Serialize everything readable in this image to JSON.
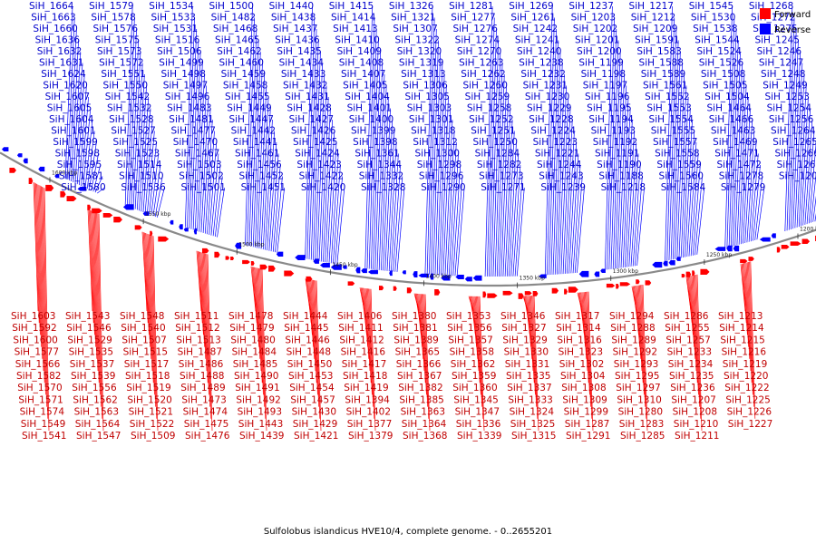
{
  "caption": "Sulfolobus islandicus HVE10/4, complete genome. - 0..2655201",
  "legend": [
    {
      "label": "Forward",
      "color": "#ff0000"
    },
    {
      "label": "Reverse",
      "color": "#0000ff"
    }
  ],
  "colors": {
    "forward": "#ff0000",
    "reverse": "#0000ff",
    "backbone": "#8a8a8a",
    "text_forward": "#c00000",
    "text_reverse": "#0000cc"
  },
  "ticks": [
    "1600 kbp",
    "1550 kbp",
    "1500 kbp",
    "1450 kbp",
    "1400 kbp",
    "1350 kbp",
    "1300 kbp",
    "1250 kbp",
    "1200 kbp"
  ],
  "reverse_labels": [
    "SiH_1664",
    "SiH_1663",
    "SiH_1660",
    "SiH_1636",
    "SiH_1632",
    "SiH_1631",
    "SiH_1624",
    "SiH_1620",
    "SiH_1607",
    "SiH_1605",
    "SiH_1604",
    "SiH_1601",
    "SiH_1599",
    "SiH_1598",
    "SiH_1595",
    "SiH_1581",
    "SiH_1580",
    "SiH_1579",
    "SiH_1578",
    "SiH_1576",
    "SiH_1575",
    "SiH_1573",
    "SiH_1572",
    "SiH_1551",
    "SiH_1550",
    "SiH_1542",
    "SiH_1532",
    "SiH_1528",
    "SiH_1527",
    "SiH_1525",
    "SiH_1523",
    "SiH_1514",
    "SiH_1510",
    "SiH_1536",
    "SiH_1534",
    "SiH_1533",
    "SiH_1531",
    "SiH_1516",
    "SiH_1506",
    "SiH_1499",
    "SiH_1498",
    "SiH_1497",
    "SiH_1496",
    "SiH_1483",
    "SiH_1481",
    "SiH_1477",
    "SiH_1470",
    "SiH_1467",
    "SiH_1503",
    "SiH_1502",
    "SiH_1501",
    "SiH_1500",
    "SiH_1482",
    "SiH_1468",
    "SiH_1465",
    "SiH_1462",
    "SiH_1460",
    "SiH_1459",
    "SiH_1458",
    "SiH_1455",
    "SiH_1449",
    "SiH_1447",
    "SiH_1442",
    "SiH_1441",
    "SiH_1461",
    "SiH_1456",
    "SiH_1452",
    "SiH_1451",
    "SiH_1440",
    "SiH_1438",
    "SiH_1437",
    "SiH_1436",
    "SiH_1435",
    "SiH_1434",
    "SiH_1433",
    "SiH_1432",
    "SiH_1431",
    "SiH_1428",
    "SiH_1427",
    "SiH_1426",
    "SiH_1425",
    "SiH_1424",
    "SiH_1423",
    "SiH_1422",
    "SiH_1420",
    "SiH_1415",
    "SiH_1414",
    "SiH_1413",
    "SiH_1410",
    "SiH_1409",
    "SiH_1408",
    "SiH_1407",
    "SiH_1405",
    "SiH_1404",
    "SiH_1401",
    "SiH_1400",
    "SiH_1399",
    "SiH_1398",
    "SiH_1361",
    "SiH_1344",
    "SiH_1332",
    "SiH_1328",
    "SiH_1326",
    "SiH_1321",
    "SiH_1307",
    "SiH_1322",
    "SiH_1320",
    "SiH_1319",
    "SiH_1313",
    "SiH_1306",
    "SiH_1305",
    "SiH_1303",
    "SiH_1301",
    "SiH_1318",
    "SiH_1312",
    "SiH_1300",
    "SiH_1298",
    "SiH_1296",
    "SiH_1290",
    "SiH_1281",
    "SiH_1277",
    "SiH_1276",
    "SiH_1274",
    "SiH_1270",
    "SiH_1263",
    "SiH_1262",
    "SiH_1260",
    "SiH_1259",
    "SiH_1258",
    "SiH_1252",
    "SiH_1251",
    "SiH_1250",
    "SiH_1284",
    "SiH_1282",
    "SiH_1273",
    "SiH_1271",
    "SiH_1269",
    "SiH_1261",
    "SiH_1242",
    "SiH_1241",
    "SiH_1240",
    "SiH_1238",
    "SiH_1232",
    "SiH_1231",
    "SiH_1230",
    "SiH_1229",
    "SiH_1228",
    "SiH_1224",
    "SiH_1223",
    "SiH_1221",
    "SiH_1244",
    "SiH_1243",
    "SiH_1239",
    "SiH_1237",
    "SiH_1203",
    "SiH_1202",
    "SiH_1201",
    "SiH_1200",
    "SiH_1199",
    "SiH_1198",
    "SiH_1197",
    "SiH_1196",
    "SiH_1195",
    "SiH_1194",
    "SiH_1193",
    "SiH_1192",
    "SiH_1191",
    "SiH_1190",
    "SiH_1188",
    "SiH_1218",
    "SiH_1217",
    "SiH_1212",
    "SiH_1209",
    "SiH_1591",
    "SiH_1583",
    "SiH_1588",
    "SiH_1589",
    "SiH_1561",
    "SiH_1552",
    "SiH_1553",
    "SiH_1554",
    "SiH_1555",
    "SiH_1557",
    "SiH_1558",
    "SiH_1559",
    "SiH_1560",
    "SiH_1584",
    "SiH_1545",
    "SiH_1530",
    "SiH_1538",
    "SiH_1544",
    "SiH_1524",
    "SiH_1526",
    "SiH_1508",
    "SiH_1505",
    "SiH_1504",
    "SiH_1464",
    "SiH_1466",
    "SiH_1463",
    "SiH_1469",
    "SiH_1471",
    "SiH_1472",
    "SiH_1278",
    "SiH_1279",
    "SiH_1268",
    "SiH_1272",
    "SiH_1275",
    "SiH_1245",
    "SiH_1246",
    "SiH_1247",
    "SiH_1248",
    "SiH_1249",
    "SiH_1253",
    "SiH_1254",
    "SiH_1256",
    "SiH_1264",
    "SiH_1265",
    "SiH_1266",
    "SiH_1267",
    "SiH_1206"
  ],
  "forward_labels": [
    "SiH_1603",
    "SiH_1592",
    "SiH_1600",
    "SiH_1577",
    "SiH_1566",
    "SiH_1582",
    "SiH_1570",
    "SiH_1571",
    "SiH_1574",
    "SiH_1549",
    "SiH_1541",
    "SiH_1543",
    "SiH_1546",
    "SiH_1529",
    "SiH_1535",
    "SiH_1537",
    "SiH_1539",
    "SiH_1556",
    "SiH_1562",
    "SiH_1563",
    "SiH_1564",
    "SiH_1547",
    "SiH_1548",
    "SiH_1540",
    "SiH_1507",
    "SiH_1515",
    "SiH_1517",
    "SiH_1518",
    "SiH_1519",
    "SiH_1520",
    "SiH_1521",
    "SiH_1522",
    "SiH_1509",
    "SiH_1511",
    "SiH_1512",
    "SiH_1513",
    "SiH_1487",
    "SiH_1486",
    "SiH_1488",
    "SiH_1489",
    "SiH_1473",
    "SiH_1474",
    "SiH_1475",
    "SiH_1476",
    "SiH_1478",
    "SiH_1479",
    "SiH_1480",
    "SiH_1484",
    "SiH_1485",
    "SiH_1490",
    "SiH_1491",
    "SiH_1492",
    "SiH_1493",
    "SiH_1443",
    "SiH_1439",
    "SiH_1444",
    "SiH_1445",
    "SiH_1446",
    "SiH_1448",
    "SiH_1450",
    "SiH_1453",
    "SiH_1454",
    "SiH_1457",
    "SiH_1430",
    "SiH_1429",
    "SiH_1421",
    "SiH_1406",
    "SiH_1411",
    "SiH_1412",
    "SiH_1416",
    "SiH_1417",
    "SiH_1418",
    "SiH_1419",
    "SiH_1394",
    "SiH_1402",
    "SiH_1377",
    "SiH_1379",
    "SiH_1380",
    "SiH_1381",
    "SiH_1389",
    "SiH_1365",
    "SiH_1366",
    "SiH_1367",
    "SiH_1382",
    "SiH_1385",
    "SiH_1363",
    "SiH_1364",
    "SiH_1368",
    "SiH_1353",
    "SiH_1356",
    "SiH_1357",
    "SiH_1358",
    "SiH_1362",
    "SiH_1359",
    "SiH_1360",
    "SiH_1345",
    "SiH_1347",
    "SiH_1336",
    "SiH_1339",
    "SiH_1346",
    "SiH_1327",
    "SiH_1329",
    "SiH_1330",
    "SiH_1331",
    "SiH_1335",
    "SiH_1337",
    "SiH_1333",
    "SiH_1324",
    "SiH_1325",
    "SiH_1315",
    "SiH_1317",
    "SiH_1314",
    "SiH_1316",
    "SiH_1323",
    "SiH_1302",
    "SiH_1304",
    "SiH_1308",
    "SiH_1309",
    "SiH_1299",
    "SiH_1287",
    "SiH_1291",
    "SiH_1294",
    "SiH_1288",
    "SiH_1289",
    "SiH_1292",
    "SiH_1293",
    "SiH_1295",
    "SiH_1297",
    "SiH_1310",
    "SiH_1280",
    "SiH_1283",
    "SiH_1285",
    "SiH_1286",
    "SiH_1255",
    "SiH_1257",
    "SiH_1233",
    "SiH_1234",
    "SiH_1235",
    "SiH_1236",
    "SiH_1207",
    "SiH_1208",
    "SiH_1210",
    "SiH_1211",
    "SiH_1213",
    "SiH_1214",
    "SiH_1215",
    "SiH_1216",
    "SiH_1219",
    "SiH_1220",
    "SiH_1222",
    "SiH_1225",
    "SiH_1226",
    "SiH_1227"
  ]
}
